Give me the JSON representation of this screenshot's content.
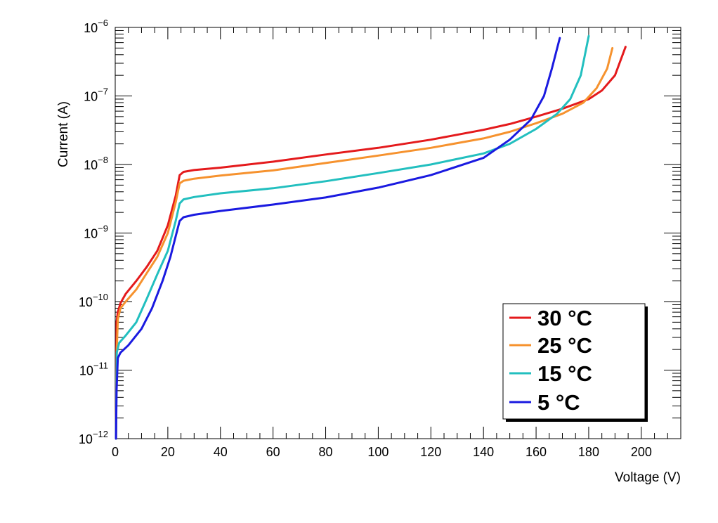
{
  "chart_data": {
    "type": "line",
    "xlabel": "Voltage (V)",
    "ylabel": "Current (A)",
    "xlim": [
      0,
      215
    ],
    "ylim": [
      1e-12,
      1e-06
    ],
    "yscale": "log",
    "x_ticks": [
      "0",
      "20",
      "40",
      "60",
      "80",
      "100",
      "120",
      "140",
      "160",
      "180",
      "200"
    ],
    "y_ticks": [
      {
        "base": "10",
        "exp": "−12"
      },
      {
        "base": "10",
        "exp": "−11"
      },
      {
        "base": "10",
        "exp": "−10"
      },
      {
        "base": "10",
        "exp": "−9"
      },
      {
        "base": "10",
        "exp": "−8"
      },
      {
        "base": "10",
        "exp": "−7"
      },
      {
        "base": "10",
        "exp": "−6"
      }
    ],
    "grid": false,
    "legend_position": "bottom-right",
    "series": [
      {
        "name": "30 °C",
        "color": "#e41a1c",
        "points": [
          [
            0.3,
            1e-12
          ],
          [
            0.5,
            5e-11
          ],
          [
            1,
            7e-11
          ],
          [
            2,
            9.5e-11
          ],
          [
            4,
            1.3e-10
          ],
          [
            8,
            2e-10
          ],
          [
            12,
            3.2e-10
          ],
          [
            16,
            5.5e-10
          ],
          [
            20,
            1.3e-09
          ],
          [
            23,
            3.5e-09
          ],
          [
            24.5,
            7e-09
          ],
          [
            26,
            7.8e-09
          ],
          [
            30,
            8.3e-09
          ],
          [
            40,
            9e-09
          ],
          [
            60,
            1.1e-08
          ],
          [
            80,
            1.4e-08
          ],
          [
            100,
            1.75e-08
          ],
          [
            120,
            2.3e-08
          ],
          [
            140,
            3.2e-08
          ],
          [
            150,
            3.9e-08
          ],
          [
            160,
            5e-08
          ],
          [
            170,
            6.5e-08
          ],
          [
            180,
            9e-08
          ],
          [
            185,
            1.2e-07
          ],
          [
            190,
            2e-07
          ],
          [
            194,
            5.2e-07
          ]
        ]
      },
      {
        "name": "25 °C",
        "color": "#f6922e",
        "points": [
          [
            0.3,
            1e-12
          ],
          [
            0.6,
            2e-11
          ],
          [
            1,
            5.5e-11
          ],
          [
            2,
            8e-11
          ],
          [
            4,
            1e-10
          ],
          [
            8,
            1.5e-10
          ],
          [
            12,
            2.6e-10
          ],
          [
            16,
            4.5e-10
          ],
          [
            20,
            1e-09
          ],
          [
            23,
            2.8e-09
          ],
          [
            24.5,
            5.3e-09
          ],
          [
            26,
            5.8e-09
          ],
          [
            30,
            6.2e-09
          ],
          [
            40,
            6.9e-09
          ],
          [
            60,
            8.2e-09
          ],
          [
            80,
            1.05e-08
          ],
          [
            100,
            1.35e-08
          ],
          [
            120,
            1.75e-08
          ],
          [
            140,
            2.4e-08
          ],
          [
            150,
            3e-08
          ],
          [
            160,
            4e-08
          ],
          [
            170,
            5.5e-08
          ],
          [
            178,
            8e-08
          ],
          [
            183,
            1.3e-07
          ],
          [
            187,
            2.5e-07
          ],
          [
            189,
            5e-07
          ]
        ]
      },
      {
        "name": "15 °C",
        "color": "#22bfbf",
        "points": [
          [
            0.3,
            1e-12
          ],
          [
            0.6,
            1.8e-11
          ],
          [
            1.5,
            2.5e-11
          ],
          [
            4,
            3.2e-11
          ],
          [
            8,
            5e-11
          ],
          [
            12,
            1.1e-10
          ],
          [
            16,
            2.5e-10
          ],
          [
            20,
            5.5e-10
          ],
          [
            23,
            1.5e-09
          ],
          [
            24.5,
            2.7e-09
          ],
          [
            26,
            3.1e-09
          ],
          [
            30,
            3.35e-09
          ],
          [
            40,
            3.8e-09
          ],
          [
            60,
            4.5e-09
          ],
          [
            80,
            5.7e-09
          ],
          [
            100,
            7.5e-09
          ],
          [
            120,
            1e-08
          ],
          [
            140,
            1.45e-08
          ],
          [
            150,
            2e-08
          ],
          [
            160,
            3.3e-08
          ],
          [
            168,
            5.5e-08
          ],
          [
            173,
            9e-08
          ],
          [
            177,
            2e-07
          ],
          [
            180,
            7.5e-07
          ]
        ]
      },
      {
        "name": "5 °C",
        "color": "#1a1ae0",
        "points": [
          [
            0.3,
            1e-12
          ],
          [
            0.5,
            5e-12
          ],
          [
            1,
            1.5e-11
          ],
          [
            2,
            1.8e-11
          ],
          [
            5,
            2.3e-11
          ],
          [
            10,
            4e-11
          ],
          [
            14,
            8e-11
          ],
          [
            18,
            2e-10
          ],
          [
            21,
            4.5e-10
          ],
          [
            23,
            9e-10
          ],
          [
            24.5,
            1.5e-09
          ],
          [
            26,
            1.7e-09
          ],
          [
            30,
            1.85e-09
          ],
          [
            40,
            2.1e-09
          ],
          [
            60,
            2.6e-09
          ],
          [
            80,
            3.3e-09
          ],
          [
            100,
            4.6e-09
          ],
          [
            120,
            7e-09
          ],
          [
            140,
            1.25e-08
          ],
          [
            150,
            2.3e-08
          ],
          [
            158,
            4.5e-08
          ],
          [
            163,
            1e-07
          ],
          [
            166,
            2.5e-07
          ],
          [
            169,
            7e-07
          ]
        ]
      }
    ]
  }
}
